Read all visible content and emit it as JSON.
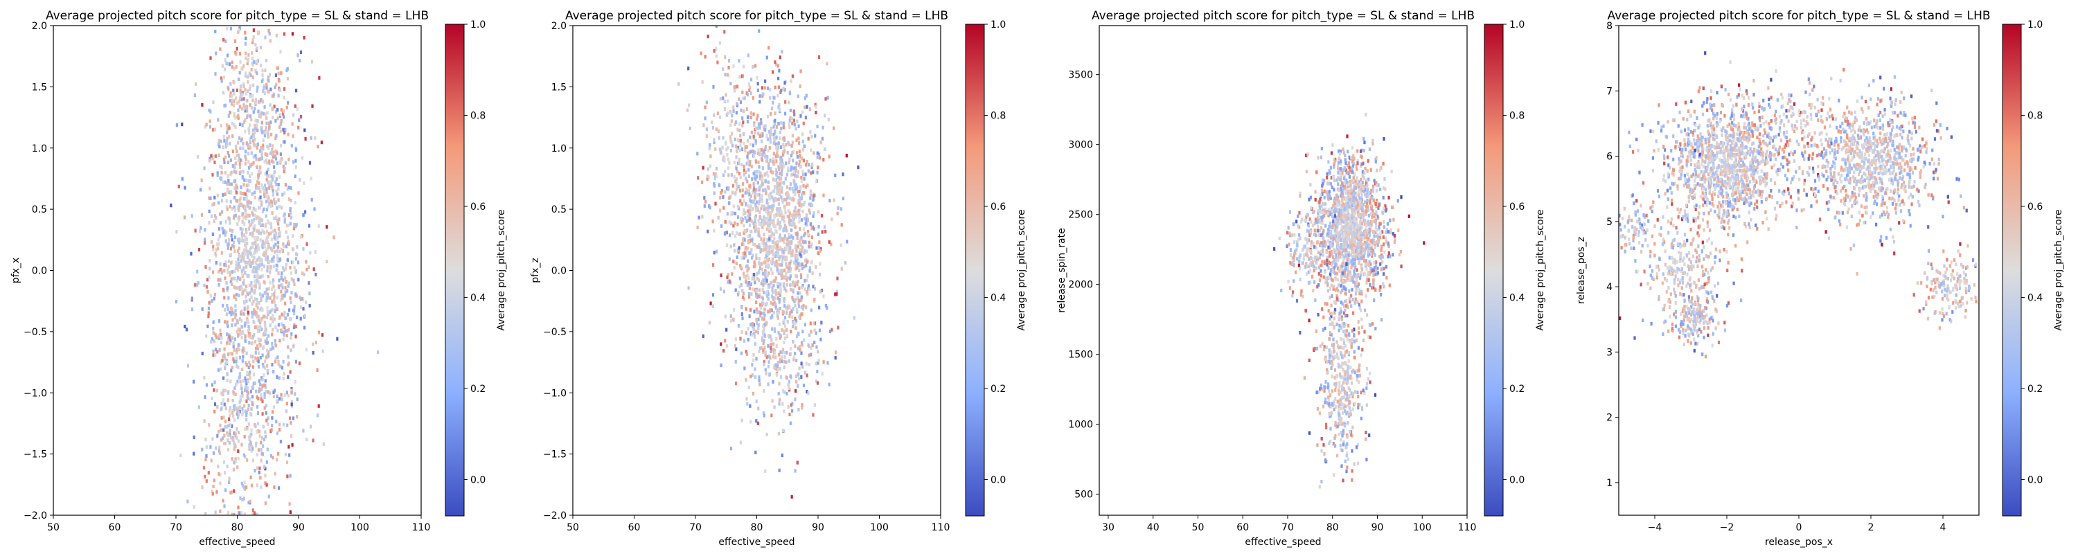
{
  "chart_data": [
    {
      "type": "heatmap",
      "title": "Average projected pitch score for pitch_type = SL & stand = LHB",
      "xlabel": "effective_speed",
      "ylabel": "pfx_x",
      "xlim": [
        50,
        110
      ],
      "ylim": [
        -2.0,
        2.0
      ],
      "xticks": [
        50,
        60,
        70,
        80,
        90,
        100,
        110
      ],
      "xtick_labels": [
        "50",
        "60",
        "70",
        "80",
        "90",
        "100",
        "110"
      ],
      "yticks": [
        -2.0,
        -1.5,
        -1.0,
        -0.5,
        0.0,
        0.5,
        1.0,
        1.5,
        2.0
      ],
      "ytick_labels": [
        "−2.0",
        "−1.5",
        "−1.0",
        "−0.5",
        "0.0",
        "0.5",
        "1.0",
        "1.5",
        "2.0"
      ],
      "colorbar": {
        "label": "Average proj_pitch_score",
        "range": [
          -0.08,
          1.0
        ],
        "ticks": [
          0.0,
          0.2,
          0.4,
          0.6,
          0.8,
          1.0
        ],
        "tick_labels": [
          "0.0",
          "0.2",
          "0.4",
          "0.6",
          "0.8",
          "1.0"
        ],
        "colormap": "coolwarm"
      },
      "clusters": [
        {
          "cx": 83,
          "cy": 0.1,
          "sx": 4.2,
          "sy": 0.75,
          "n": 1600
        },
        {
          "cx": 80,
          "cy": -1.3,
          "sx": 3.5,
          "sy": 0.45,
          "n": 300
        },
        {
          "cx": 82,
          "cy": 1.4,
          "sx": 3.2,
          "sy": 0.35,
          "n": 250
        }
      ]
    },
    {
      "type": "heatmap",
      "title": "Average projected pitch score for pitch_type = SL & stand = LHB",
      "xlabel": "effective_speed",
      "ylabel": "pfx_z",
      "xlim": [
        50,
        110
      ],
      "ylim": [
        -2.0,
        2.0
      ],
      "xticks": [
        50,
        60,
        70,
        80,
        90,
        100,
        110
      ],
      "xtick_labels": [
        "50",
        "60",
        "70",
        "80",
        "90",
        "100",
        "110"
      ],
      "yticks": [
        -2.0,
        -1.5,
        -1.0,
        -0.5,
        0.0,
        0.5,
        1.0,
        1.5,
        2.0
      ],
      "ytick_labels": [
        "−2.0",
        "−1.5",
        "−1.0",
        "−0.5",
        "0.0",
        "0.5",
        "1.0",
        "1.5",
        "2.0"
      ],
      "colorbar": {
        "label": "Average proj_pitch_score",
        "range": [
          -0.08,
          1.0
        ],
        "ticks": [
          0.0,
          0.2,
          0.4,
          0.6,
          0.8,
          1.0
        ],
        "tick_labels": [
          "0.0",
          "0.2",
          "0.4",
          "0.6",
          "0.8",
          "1.0"
        ],
        "colormap": "coolwarm"
      },
      "clusters": [
        {
          "cx": 83,
          "cy": 0.35,
          "sx": 4.0,
          "sy": 0.6,
          "n": 1600
        },
        {
          "cx": 75,
          "cy": 1.0,
          "sx": 3.0,
          "sy": 0.4,
          "n": 200
        },
        {
          "cx": 84,
          "cy": -0.6,
          "sx": 3.5,
          "sy": 0.35,
          "n": 200
        }
      ]
    },
    {
      "type": "heatmap",
      "title": "Average projected pitch score for pitch_type = SL & stand = LHB",
      "xlabel": "effective_speed",
      "ylabel": "release_spin_rate",
      "xlim": [
        28,
        110
      ],
      "ylim": [
        350,
        3850
      ],
      "xticks": [
        30,
        40,
        50,
        60,
        70,
        80,
        90,
        100,
        110
      ],
      "xtick_labels": [
        "30",
        "40",
        "50",
        "60",
        "70",
        "80",
        "90",
        "100",
        "110"
      ],
      "yticks": [
        500,
        1000,
        1500,
        2000,
        2500,
        3000,
        3500
      ],
      "ytick_labels": [
        "500",
        "1000",
        "1500",
        "2000",
        "2500",
        "3000",
        "3500"
      ],
      "colorbar": {
        "label": "Average proj_pitch_score",
        "range": [
          -0.08,
          1.0
        ],
        "ticks": [
          0.0,
          0.2,
          0.4,
          0.6,
          0.8,
          1.0
        ],
        "tick_labels": [
          "0.0",
          "0.2",
          "0.4",
          "0.6",
          "0.8",
          "1.0"
        ],
        "colormap": "coolwarm"
      },
      "clusters": [
        {
          "cx": 84,
          "cy": 2400,
          "sx": 4.0,
          "sy": 250,
          "n": 1500
        },
        {
          "cx": 82,
          "cy": 1350,
          "sx": 2.8,
          "sy": 320,
          "n": 450
        },
        {
          "cx": 74,
          "cy": 2250,
          "sx": 2.5,
          "sy": 180,
          "n": 150
        }
      ]
    },
    {
      "type": "heatmap",
      "title": "Average projected pitch score for pitch_type = SL & stand = LHB",
      "xlabel": "release_pos_x",
      "ylabel": "release_pos_z",
      "xlim": [
        -5.0,
        5.0
      ],
      "ylim": [
        0.5,
        8.0
      ],
      "xticks": [
        -4,
        -2,
        0,
        2,
        4
      ],
      "xtick_labels": [
        "−4",
        "−2",
        "0",
        "2",
        "4"
      ],
      "yticks": [
        1,
        2,
        3,
        4,
        5,
        6,
        7,
        8
      ],
      "ytick_labels": [
        "1",
        "2",
        "3",
        "4",
        "5",
        "6",
        "7",
        "8"
      ],
      "colorbar": {
        "label": "Average proj_pitch_score",
        "range": [
          -0.08,
          1.0
        ],
        "ticks": [
          0.0,
          0.2,
          0.4,
          0.6,
          0.8,
          1.0
        ],
        "tick_labels": [
          "0.0",
          "0.2",
          "0.4",
          "0.6",
          "0.8",
          "1.0"
        ],
        "colormap": "coolwarm"
      },
      "clusters": [
        {
          "cx": -2.0,
          "cy": 5.9,
          "sx": 0.9,
          "sy": 0.45,
          "n": 1200
        },
        {
          "cx": 2.0,
          "cy": 5.9,
          "sx": 0.85,
          "sy": 0.45,
          "n": 900
        },
        {
          "cx": -3.2,
          "cy": 4.3,
          "sx": 0.6,
          "sy": 0.5,
          "n": 300
        },
        {
          "cx": -2.9,
          "cy": 3.5,
          "sx": 0.3,
          "sy": 0.2,
          "n": 120
        },
        {
          "cx": 4.2,
          "cy": 4.0,
          "sx": 0.4,
          "sy": 0.25,
          "n": 150
        },
        {
          "cx": -4.6,
          "cy": 4.9,
          "sx": 0.25,
          "sy": 0.2,
          "n": 60
        },
        {
          "cx": 0.0,
          "cy": 6.6,
          "sx": 0.7,
          "sy": 0.3,
          "n": 120
        }
      ]
    }
  ]
}
